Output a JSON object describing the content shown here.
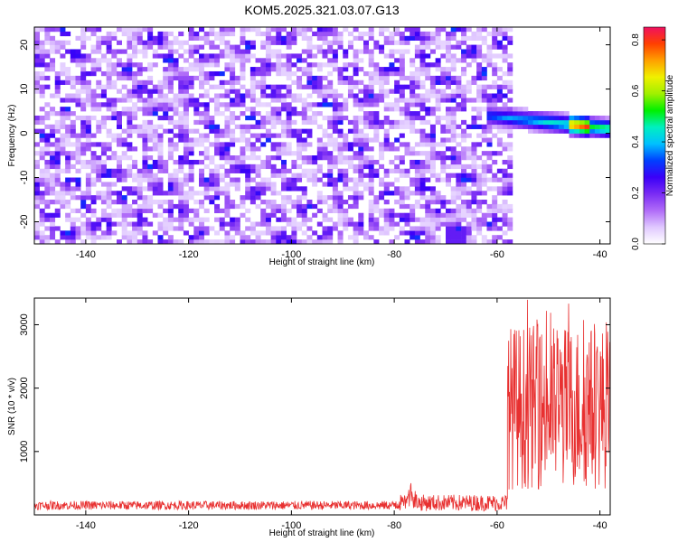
{
  "figure": {
    "title": "KOM5.2025.321.03.07.G13"
  },
  "chart_data": [
    {
      "type": "heatmap",
      "xlabel": "Height of straight line (km)",
      "ylabel": "Frequency (Hz)",
      "xlim": [
        -150,
        -38
      ],
      "ylim": [
        -25,
        24
      ],
      "xticks": [
        -140,
        -120,
        -100,
        -80,
        -60,
        -40
      ],
      "yticks": [
        -20,
        -10,
        0,
        10,
        20
      ],
      "colorbar": {
        "label": "Normalized spectral amplitude",
        "range": [
          0,
          0.85
        ],
        "ticks": [
          0.0,
          0.2,
          0.4,
          0.6,
          0.8
        ],
        "colors": [
          "#ffffff",
          "#e0c8ff",
          "#b06cf8",
          "#7a2cf4",
          "#3a00f8",
          "#0040ff",
          "#00c0ff",
          "#00f0c0",
          "#00f000",
          "#a0f000",
          "#f0f000",
          "#ffa000",
          "#ff4000",
          "#f01060"
        ]
      },
      "features": {
        "noise_region_x": [
          -150,
          -57
        ],
        "noise_level_range": [
          0.05,
          0.25
        ],
        "signal_ridge": {
          "x_start": -62,
          "x_end": -38,
          "frequency_start": 4,
          "frequency_end": 1,
          "peak_value": 0.85,
          "peak_x": -44
        },
        "low_spot": {
          "x": -68,
          "frequency": -23,
          "value": 0.22
        }
      },
      "grid": false
    },
    {
      "type": "line",
      "xlabel": "Height of straight line (km)",
      "ylabel": "SNR (10 * v/v)",
      "xlim": [
        -150,
        -38
      ],
      "ylim": [
        0,
        3420
      ],
      "xticks": [
        -140,
        -120,
        -100,
        -80,
        -60,
        -40
      ],
      "yticks": [
        1000,
        2000,
        3000
      ],
      "series": [
        {
          "color": "#e83030",
          "segments": [
            {
              "x_range": [
                -150,
                -80
              ],
              "baseline": 150,
              "noise": 70
            },
            {
              "x_range": [
                -80,
                -58
              ],
              "baseline": 190,
              "noise": 130,
              "peak_x": -77,
              "peak_value": 570
            },
            {
              "x_range": [
                -58,
                -38
              ],
              "baseline": 1700,
              "noise": 1300,
              "peak_value": 3400
            }
          ]
        }
      ],
      "grid": false
    }
  ]
}
